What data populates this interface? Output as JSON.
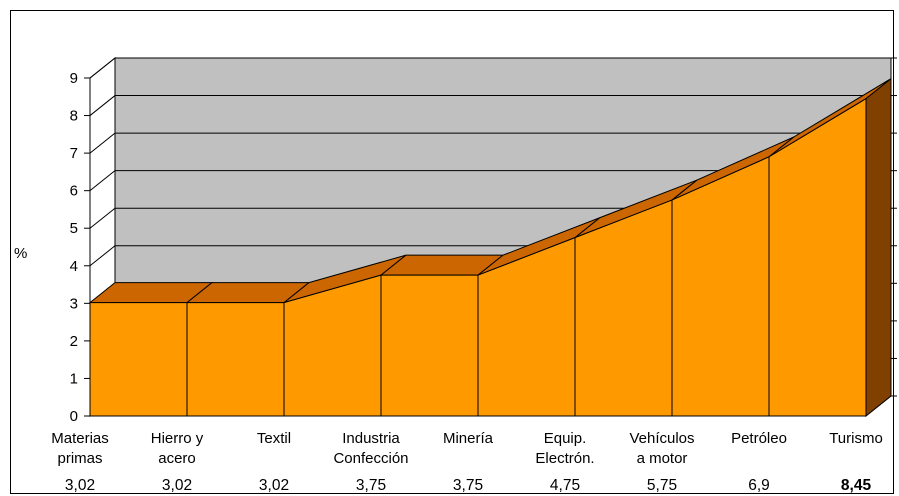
{
  "chart_data": {
    "type": "area",
    "ylabel": "%",
    "ylim": [
      0,
      9
    ],
    "yticks": [
      0,
      1,
      2,
      3,
      4,
      5,
      6,
      7,
      8,
      9
    ],
    "grid": true,
    "legend": "none",
    "three_d": true,
    "categories": [
      [
        "Materias",
        "primas"
      ],
      [
        "Hierro y",
        "acero"
      ],
      [
        "Textil"
      ],
      [
        "Industria",
        "Confección"
      ],
      [
        "Minería"
      ],
      [
        "Equip.",
        "Electrón."
      ],
      [
        "Vehículos",
        "a motor"
      ],
      [
        "Petróleo"
      ],
      [
        "Turismo"
      ]
    ],
    "values": [
      3.02,
      3.02,
      3.02,
      3.75,
      3.75,
      4.75,
      5.75,
      6.9,
      8.45
    ],
    "value_labels": [
      "3,02",
      "3,02",
      "3,02",
      "3,75",
      "3,75",
      "4,75",
      "5,75",
      "6,9",
      "8,45"
    ],
    "highlight_index": 8,
    "colors": {
      "fill": "#ff9900",
      "top": "#cc6600",
      "side": "#804000",
      "wall": "#c0c0c0",
      "floor": "#808080"
    }
  }
}
